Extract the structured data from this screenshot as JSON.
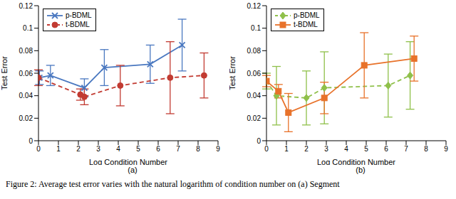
{
  "chart_data": [
    {
      "type": "line",
      "title": "(a)",
      "x_label": "Log Condition Number",
      "y_label": "Test Error",
      "xlim": [
        0,
        9
      ],
      "xticks": [
        0,
        1,
        2,
        3,
        4,
        5,
        6,
        7,
        8,
        9
      ],
      "ylim": [
        0,
        0.12
      ],
      "yticks": [
        0,
        0.02,
        0.04,
        0.06,
        0.08,
        0.1,
        0.12
      ],
      "grid": false,
      "legend": "upper left",
      "series": [
        {
          "name": "p-BDML",
          "color": "#4a78c0",
          "marker": "x",
          "line_style": "solid",
          "x": [
            0.05,
            0.6,
            2.3,
            3.3,
            5.6,
            7.2
          ],
          "values": [
            0.056,
            0.058,
            0.047,
            0.065,
            0.068,
            0.085
          ],
          "error": [
            0.006,
            0.009,
            0.008,
            0.016,
            0.017,
            0.023
          ]
        },
        {
          "name": "t-BDML",
          "color": "#c23b32",
          "marker": "circle",
          "line_style": "dashed",
          "x": [
            0,
            2.1,
            2.3,
            4.1,
            6.6,
            8.3
          ],
          "values": [
            0.056,
            0.041,
            0.039,
            0.049,
            0.056,
            0.058
          ],
          "error": [
            0.007,
            0.005,
            0.007,
            0.018,
            0.032,
            0.02
          ]
        }
      ]
    },
    {
      "type": "line",
      "title": "(b)",
      "x_label": "Log Condition Number",
      "y_label": "Test Error",
      "xlim": [
        0,
        9
      ],
      "xticks": [
        0,
        1,
        2,
        3,
        4,
        5,
        6,
        7,
        8,
        9
      ],
      "ylim": [
        0,
        0.12
      ],
      "yticks": [
        0,
        0.02,
        0.04,
        0.06,
        0.08,
        0.1,
        0.12
      ],
      "grid": false,
      "legend": "upper left",
      "series": [
        {
          "name": "p-BDML",
          "color": "#8fc04a",
          "marker": "diamond",
          "line_style": "dashed",
          "x": [
            0,
            0.5,
            2,
            2.9,
            6.1,
            7.2
          ],
          "values": [
            0.053,
            0.04,
            0.038,
            0.047,
            0.049,
            0.058
          ],
          "error": [
            0.007,
            0.026,
            0.024,
            0.032,
            0.028,
            0.03
          ]
        },
        {
          "name": "t-BDML",
          "color": "#e8722a",
          "marker": "square",
          "line_style": "solid",
          "x": [
            0,
            0.6,
            1.1,
            2.9,
            4.9,
            7.4
          ],
          "values": [
            0.053,
            0.044,
            0.025,
            0.038,
            0.067,
            0.073
          ],
          "error": [
            0.005,
            0.006,
            0.017,
            0.014,
            0.029,
            0.02
          ]
        }
      ]
    }
  ],
  "caption": "Figure 2: Average test error varies with the natural logarithm of condition number on (a) Segment"
}
